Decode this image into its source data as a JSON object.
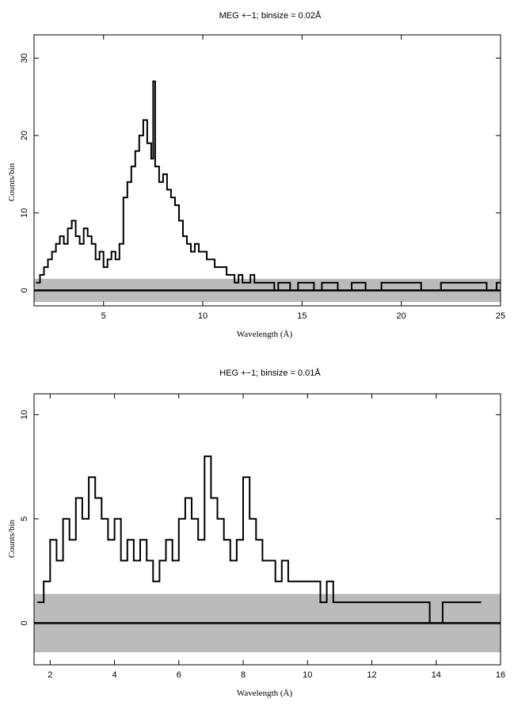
{
  "chart_data": [
    {
      "type": "line",
      "title": "MEG +−1; binsize = 0.02Å",
      "xlabel": "Wavelength (Å)",
      "ylabel": "Counts/bin",
      "xlim": [
        1.5,
        25
      ],
      "ylim": [
        -2,
        33
      ],
      "xticks": [
        5,
        10,
        15,
        20,
        25
      ],
      "xtick_labels": [
        "5",
        "10",
        "15",
        "20",
        "25"
      ],
      "yticks": [
        0,
        10,
        20,
        30
      ],
      "ytick_labels": [
        "0",
        "10",
        "20",
        "30"
      ],
      "grid": false,
      "series": [
        {
          "style": "histogram-step",
          "color": "#000000",
          "x": [
            1.6,
            1.8,
            2.0,
            2.2,
            2.4,
            2.6,
            2.8,
            3.0,
            3.2,
            3.4,
            3.6,
            3.8,
            4.0,
            4.2,
            4.4,
            4.6,
            4.8,
            5.0,
            5.2,
            5.4,
            5.6,
            5.8,
            6.0,
            6.2,
            6.4,
            6.6,
            6.8,
            7.0,
            7.2,
            7.4,
            7.5,
            7.6,
            7.8,
            8.0,
            8.2,
            8.4,
            8.6,
            8.8,
            9.0,
            9.2,
            9.4,
            9.6,
            9.8,
            10.0,
            10.2,
            10.4,
            10.6,
            10.8,
            11.0,
            11.2,
            11.4,
            11.6,
            11.8,
            12.0,
            12.2,
            12.4,
            12.6,
            12.8,
            13.0,
            13.2,
            13.4,
            13.6,
            13.8,
            14.0,
            14.4,
            14.8,
            15.2,
            15.6,
            16.0,
            16.8,
            17.5,
            18.2,
            19.0,
            20.0,
            21.0,
            22.0,
            23.0,
            24.3,
            24.8
          ],
          "values": [
            1,
            2,
            3,
            4,
            5,
            6,
            7,
            6,
            8,
            9,
            7,
            6,
            8,
            7,
            6,
            4,
            5,
            3,
            4,
            5,
            4,
            6,
            12,
            14,
            16,
            18,
            20,
            22,
            19,
            17,
            27,
            16,
            14,
            15,
            13,
            12,
            11,
            9,
            7,
            6,
            5,
            6,
            5,
            5,
            4,
            4,
            3,
            3,
            3,
            2,
            2,
            1,
            2,
            1,
            1,
            2,
            1,
            1,
            1,
            1,
            1,
            0,
            1,
            1,
            0,
            1,
            1,
            0,
            1,
            0,
            1,
            0,
            1,
            1,
            0,
            1,
            1,
            0,
            1
          ]
        }
      ],
      "background_band": {
        "color": "#bbbbbb",
        "low": -1.5,
        "high": 1.5
      }
    },
    {
      "type": "line",
      "title": "HEG +−1; binsize = 0.01Å",
      "xlabel": "Wavelength (Å)",
      "ylabel": "Counts/bin",
      "xlim": [
        1.5,
        16
      ],
      "ylim": [
        -2,
        11
      ],
      "xticks": [
        2,
        4,
        6,
        8,
        10,
        12,
        14,
        16
      ],
      "xtick_labels": [
        "2",
        "4",
        "6",
        "8",
        "10",
        "12",
        "14",
        "16"
      ],
      "yticks": [
        0,
        5,
        10
      ],
      "ytick_labels": [
        "0",
        "5",
        "10"
      ],
      "grid": false,
      "series": [
        {
          "style": "histogram-step",
          "color": "#000000",
          "x": [
            1.6,
            1.8,
            2.0,
            2.2,
            2.4,
            2.6,
            2.8,
            3.0,
            3.2,
            3.4,
            3.6,
            3.8,
            4.0,
            4.2,
            4.4,
            4.6,
            4.8,
            5.0,
            5.2,
            5.4,
            5.6,
            5.8,
            6.0,
            6.2,
            6.4,
            6.6,
            6.8,
            7.0,
            7.2,
            7.4,
            7.6,
            7.8,
            8.0,
            8.2,
            8.4,
            8.6,
            8.8,
            9.0,
            9.2,
            9.4,
            9.6,
            9.8,
            10.0,
            10.2,
            10.4,
            10.6,
            10.8,
            11.0,
            11.4,
            11.8,
            12.2,
            12.6,
            13.0,
            13.4,
            13.8,
            14.2,
            14.6,
            15.0,
            15.2
          ],
          "values": [
            1,
            2,
            4,
            3,
            5,
            4,
            6,
            5,
            7,
            6,
            5,
            4,
            5,
            3,
            4,
            3,
            4,
            3,
            2,
            3,
            4,
            3,
            5,
            6,
            5,
            4,
            8,
            6,
            5,
            4,
            3,
            4,
            7,
            5,
            4,
            3,
            3,
            2,
            3,
            2,
            2,
            2,
            2,
            2,
            1,
            2,
            1,
            1,
            1,
            1,
            1,
            1,
            1,
            1,
            0,
            1,
            1,
            1,
            1
          ]
        }
      ],
      "background_band": {
        "color": "#bbbbbb",
        "low": -1.4,
        "high": 1.4
      }
    }
  ]
}
